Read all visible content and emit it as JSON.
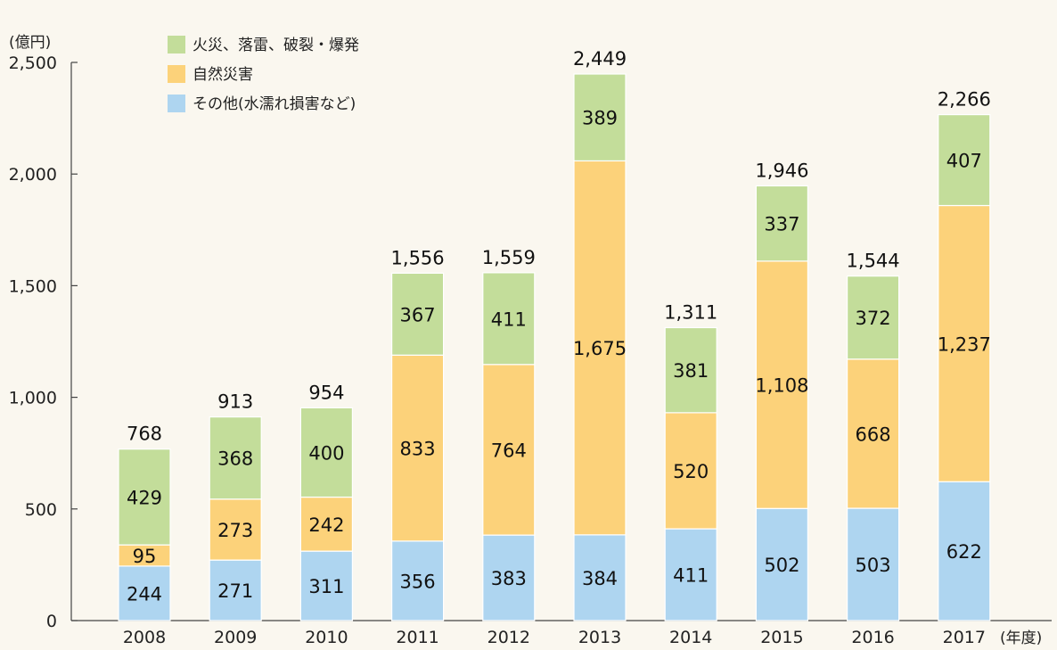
{
  "chart_data": {
    "type": "bar",
    "stacked": true,
    "title": "",
    "ylabel": "(億円)",
    "xlabel": "(年度)",
    "ylim": [
      0,
      2500
    ],
    "yticks": [
      "0",
      "500",
      "1,000",
      "1,500",
      "2,000",
      "2,500"
    ],
    "ytick_values": [
      0,
      500,
      1000,
      1500,
      2000,
      2500
    ],
    "grid": false,
    "legend_position": "top-left",
    "categories": [
      "2008",
      "2009",
      "2010",
      "2011",
      "2012",
      "2013",
      "2014",
      "2015",
      "2016",
      "2017"
    ],
    "series": [
      {
        "name": "その他(水濡れ損害など)",
        "color": "#aed5f0",
        "values": [
          244,
          271,
          311,
          356,
          383,
          384,
          411,
          502,
          503,
          622
        ],
        "labels": [
          "244",
          "271",
          "311",
          "356",
          "383",
          "384",
          "411",
          "502",
          "503",
          "622"
        ]
      },
      {
        "name": "自然災害",
        "color": "#fcd27a",
        "values": [
          95,
          273,
          242,
          833,
          764,
          1675,
          520,
          1108,
          668,
          1237
        ],
        "labels": [
          "95",
          "273",
          "242",
          "833",
          "764",
          "1,675",
          "520",
          "1,108",
          "668",
          "1,237"
        ]
      },
      {
        "name": "火災、落雷、破裂・爆発",
        "color": "#c3dd9a",
        "values": [
          429,
          368,
          400,
          367,
          411,
          389,
          381,
          337,
          372,
          407
        ],
        "labels": [
          "429",
          "368",
          "400",
          "367",
          "411",
          "389",
          "381",
          "337",
          "372",
          "407"
        ]
      }
    ],
    "totals": [
      768,
      913,
      954,
      1556,
      1559,
      2449,
      1311,
      1946,
      1544,
      2266
    ],
    "total_labels": [
      "768",
      "913",
      "954",
      "1,556",
      "1,559",
      "2,449",
      "1,311",
      "1,946",
      "1,544",
      "2,266"
    ],
    "legend_order": [
      2,
      1,
      0
    ]
  }
}
